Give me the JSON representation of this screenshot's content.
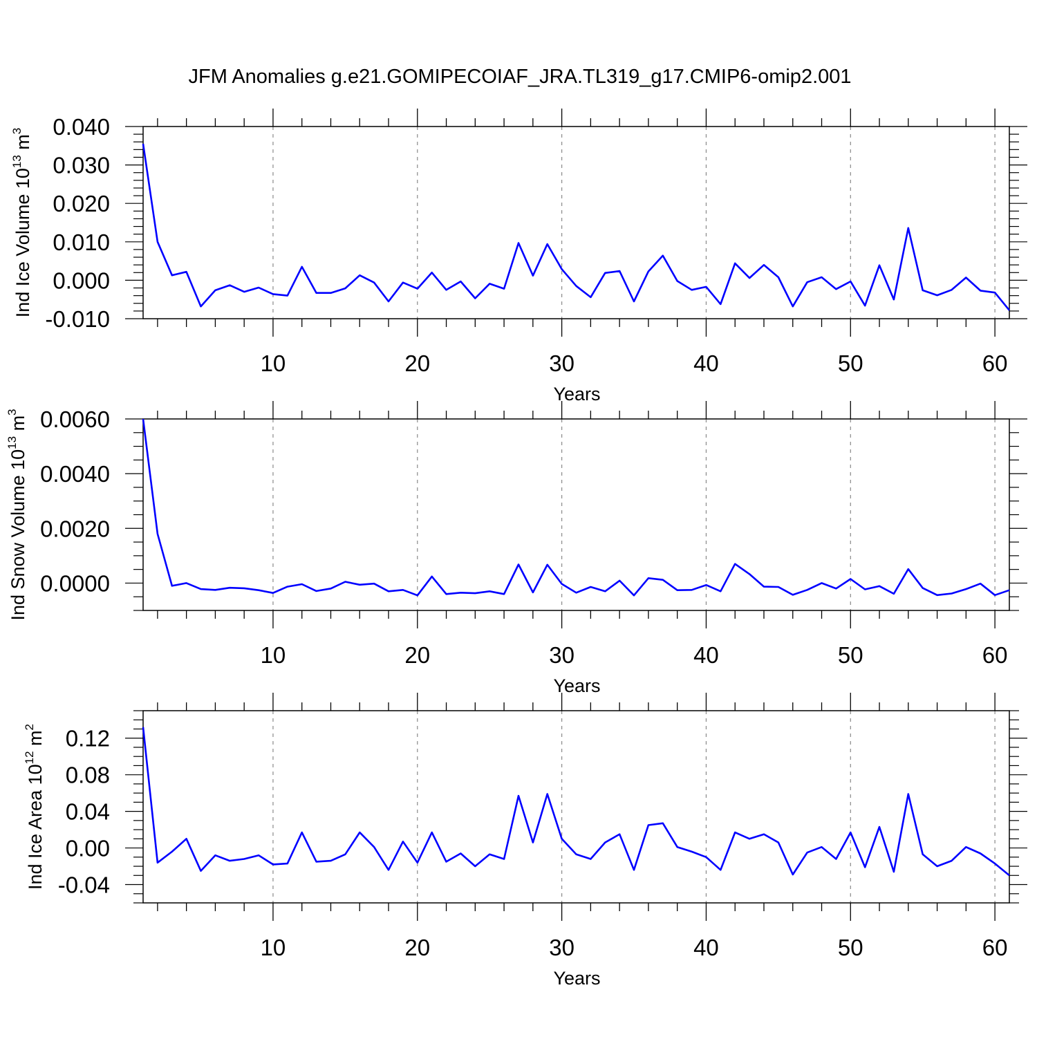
{
  "title": "JFM Anomalies g.e21.GOMIPECOIAF_JRA.TL319_g17.CMIP6-omip2.001",
  "chart_data": [
    {
      "type": "line",
      "ylabel": {
        "main": "Ind Ice Volume 10",
        "sup": "13",
        "unit": " m",
        "unit_sup": "3"
      },
      "xlabel": "Years",
      "xlim": [
        1,
        61
      ],
      "ylim": [
        -0.01,
        0.04
      ],
      "xticks": [
        10,
        20,
        30,
        40,
        50,
        60
      ],
      "yticks": [
        -0.01,
        0,
        0.01,
        0.02,
        0.03,
        0.04
      ],
      "ytick_labels": [
        "-0.010",
        "0.000",
        "0.010",
        "0.020",
        "0.030",
        "0.040"
      ],
      "y_minor_step": 0.002,
      "color": "#0000ff",
      "x": [
        1,
        2,
        3,
        4,
        5,
        6,
        7,
        8,
        9,
        10,
        11,
        12,
        13,
        14,
        15,
        16,
        17,
        18,
        19,
        20,
        21,
        22,
        23,
        24,
        25,
        26,
        27,
        28,
        29,
        30,
        31,
        32,
        33,
        34,
        35,
        36,
        37,
        38,
        39,
        40,
        41,
        42,
        43,
        44,
        45,
        46,
        47,
        48,
        49,
        50,
        51,
        52,
        53,
        54,
        55,
        56,
        57,
        58,
        59,
        60,
        61
      ],
      "values": [
        0.0355,
        0.01,
        0.0013,
        0.0022,
        -0.0068,
        -0.0026,
        -0.0013,
        -0.003,
        -0.0019,
        -0.0036,
        -0.004,
        0.0035,
        -0.0033,
        -0.0033,
        -0.0021,
        0.0013,
        -0.0006,
        -0.0055,
        -0.0006,
        -0.0022,
        0.002,
        -0.0025,
        -0.0003,
        -0.0047,
        -0.0009,
        -0.0022,
        0.0097,
        0.0012,
        0.0094,
        0.0029,
        -0.0015,
        -0.0044,
        0.0019,
        0.0024,
        -0.0055,
        0.0023,
        0.0064,
        -0.0002,
        -0.0025,
        -0.0017,
        -0.0062,
        0.0044,
        0.0006,
        0.004,
        0.0008,
        -0.0068,
        -0.0005,
        0.0008,
        -0.0023,
        -0.0003,
        -0.0066,
        0.0039,
        -0.005,
        0.0136,
        -0.0026,
        -0.0039,
        -0.0025,
        0.0007,
        -0.0027,
        -0.0032,
        -0.0078
      ]
    },
    {
      "type": "line",
      "ylabel": {
        "main": "Ind Snow Volume 10",
        "sup": "13",
        "unit": " m",
        "unit_sup": "3"
      },
      "xlabel": "Years",
      "xlim": [
        1,
        61
      ],
      "ylim": [
        -0.001,
        0.006
      ],
      "xticks": [
        10,
        20,
        30,
        40,
        50,
        60
      ],
      "yticks": [
        0,
        0.002,
        0.004,
        0.006
      ],
      "ytick_labels": [
        "0.0000",
        "0.0020",
        "0.0040",
        "0.0060"
      ],
      "y_minor_step": 0.0005,
      "color": "#0000ff",
      "x": [
        1,
        2,
        3,
        4,
        5,
        6,
        7,
        8,
        9,
        10,
        11,
        12,
        13,
        14,
        15,
        16,
        17,
        18,
        19,
        20,
        21,
        22,
        23,
        24,
        25,
        26,
        27,
        28,
        29,
        30,
        31,
        32,
        33,
        34,
        35,
        36,
        37,
        38,
        39,
        40,
        41,
        42,
        43,
        44,
        45,
        46,
        47,
        48,
        49,
        50,
        51,
        52,
        53,
        54,
        55,
        56,
        57,
        58,
        59,
        60,
        61
      ],
      "values": [
        0.006,
        0.0018,
        -0.0001,
        0.0,
        -0.00022,
        -0.00025,
        -0.00017,
        -0.00019,
        -0.00026,
        -0.00036,
        -0.00013,
        -4e-05,
        -0.00029,
        -0.0002,
        5e-05,
        -6e-05,
        -2e-05,
        -0.0003,
        -0.00025,
        -0.00045,
        0.00024,
        -0.0004,
        -0.00035,
        -0.00037,
        -0.0003,
        -0.0004,
        0.00068,
        -0.00034,
        0.00067,
        -3e-05,
        -0.00035,
        -0.00014,
        -0.0003,
        9e-05,
        -0.00045,
        0.00018,
        0.00012,
        -0.00026,
        -0.00025,
        -7e-05,
        -0.0003,
        0.0007,
        0.00033,
        -0.00013,
        -0.00014,
        -0.00043,
        -0.00025,
        0.0,
        -0.0002,
        0.00015,
        -0.00023,
        -0.00011,
        -0.00039,
        0.00051,
        -0.00018,
        -0.00044,
        -0.00038,
        -0.00022,
        -2e-05,
        -0.00044,
        -0.00026
      ]
    },
    {
      "type": "line",
      "ylabel": {
        "main": "Ind Ice Area 10",
        "sup": "12",
        "unit": " m",
        "unit_sup": "2"
      },
      "xlabel": "Years",
      "xlim": [
        1,
        61
      ],
      "ylim": [
        -0.06,
        0.15
      ],
      "xticks": [
        10,
        20,
        30,
        40,
        50,
        60
      ],
      "yticks": [
        -0.04,
        0,
        0.04,
        0.08,
        0.12
      ],
      "ytick_labels": [
        "-0.04",
        "0.00",
        "0.04",
        "0.08",
        "0.12"
      ],
      "y_minor_step": 0.01,
      "color": "#0000ff",
      "x": [
        1,
        2,
        3,
        4,
        5,
        6,
        7,
        8,
        9,
        10,
        11,
        12,
        13,
        14,
        15,
        16,
        17,
        18,
        19,
        20,
        21,
        22,
        23,
        24,
        25,
        26,
        27,
        28,
        29,
        30,
        31,
        32,
        33,
        34,
        35,
        36,
        37,
        38,
        39,
        40,
        41,
        42,
        43,
        44,
        45,
        46,
        47,
        48,
        49,
        50,
        51,
        52,
        53,
        54,
        55,
        56,
        57,
        58,
        59,
        60,
        61
      ],
      "values": [
        0.132,
        -0.016,
        -0.004,
        0.01,
        -0.025,
        -0.008,
        -0.014,
        -0.012,
        -0.008,
        -0.018,
        -0.017,
        0.017,
        -0.015,
        -0.014,
        -0.007,
        0.017,
        0.001,
        -0.024,
        0.007,
        -0.016,
        0.017,
        -0.015,
        -0.006,
        -0.02,
        -0.007,
        -0.012,
        0.057,
        0.006,
        0.059,
        0.01,
        -0.007,
        -0.012,
        0.006,
        0.015,
        -0.024,
        0.025,
        0.027,
        0.001,
        -0.004,
        -0.01,
        -0.024,
        0.017,
        0.01,
        0.015,
        0.006,
        -0.029,
        -0.005,
        0.001,
        -0.012,
        0.017,
        -0.021,
        0.023,
        -0.026,
        0.059,
        -0.007,
        -0.02,
        -0.014,
        0.001,
        -0.006,
        -0.017,
        -0.03
      ]
    }
  ]
}
